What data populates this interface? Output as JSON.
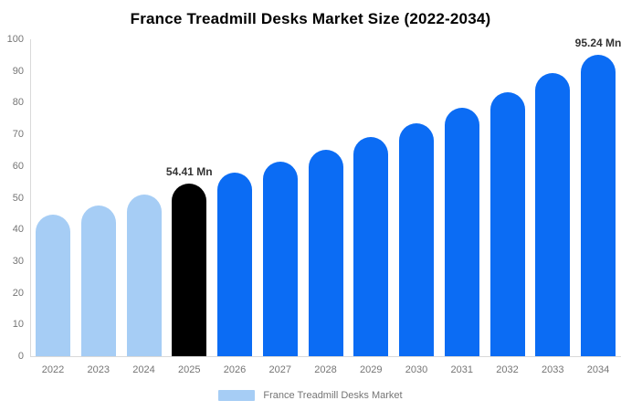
{
  "title": "France Treadmill Desks Market Size (2022-2034)",
  "chart_data": {
    "type": "bar",
    "title": "France Treadmill Desks Market Size (2022-2034)",
    "xlabel": "",
    "ylabel": "",
    "ylim": [
      0,
      100
    ],
    "y_ticks": [
      0,
      10,
      20,
      30,
      40,
      50,
      60,
      70,
      80,
      90,
      100
    ],
    "grid": false,
    "legend_position": "bottom",
    "categories": [
      "2022",
      "2023",
      "2024",
      "2025",
      "2026",
      "2027",
      "2028",
      "2029",
      "2030",
      "2031",
      "2032",
      "2033",
      "2034"
    ],
    "series": [
      {
        "name": "France Treadmill Desks Market",
        "unit": "Mn",
        "points": [
          {
            "year": "2022",
            "value": 44.6,
            "segment": "historical"
          },
          {
            "year": "2023",
            "value": 47.6,
            "segment": "historical"
          },
          {
            "year": "2024",
            "value": 50.9,
            "segment": "historical"
          },
          {
            "year": "2025",
            "value": 54.41,
            "segment": "base",
            "label": "54.41 Mn"
          },
          {
            "year": "2026",
            "value": 57.9,
            "segment": "forecast"
          },
          {
            "year": "2027",
            "value": 61.3,
            "segment": "forecast"
          },
          {
            "year": "2028",
            "value": 65.0,
            "segment": "forecast"
          },
          {
            "year": "2029",
            "value": 69.3,
            "segment": "forecast"
          },
          {
            "year": "2030",
            "value": 73.6,
            "segment": "forecast"
          },
          {
            "year": "2031",
            "value": 78.4,
            "segment": "forecast"
          },
          {
            "year": "2032",
            "value": 83.4,
            "segment": "forecast"
          },
          {
            "year": "2033",
            "value": 89.2,
            "segment": "forecast"
          },
          {
            "year": "2034",
            "value": 95.24,
            "segment": "forecast",
            "label": "95.24 Mn"
          }
        ]
      }
    ],
    "colors": {
      "historical": "#A6CDF5",
      "base": "#000000",
      "forecast": "#0B6CF4"
    },
    "axis_color": "#D9D9D9",
    "tick_label_color": "#757575",
    "data_label_color": "#333333",
    "legend": {
      "label": "France Treadmill Desks Market",
      "swatch_color": "#A6CDF5"
    }
  }
}
